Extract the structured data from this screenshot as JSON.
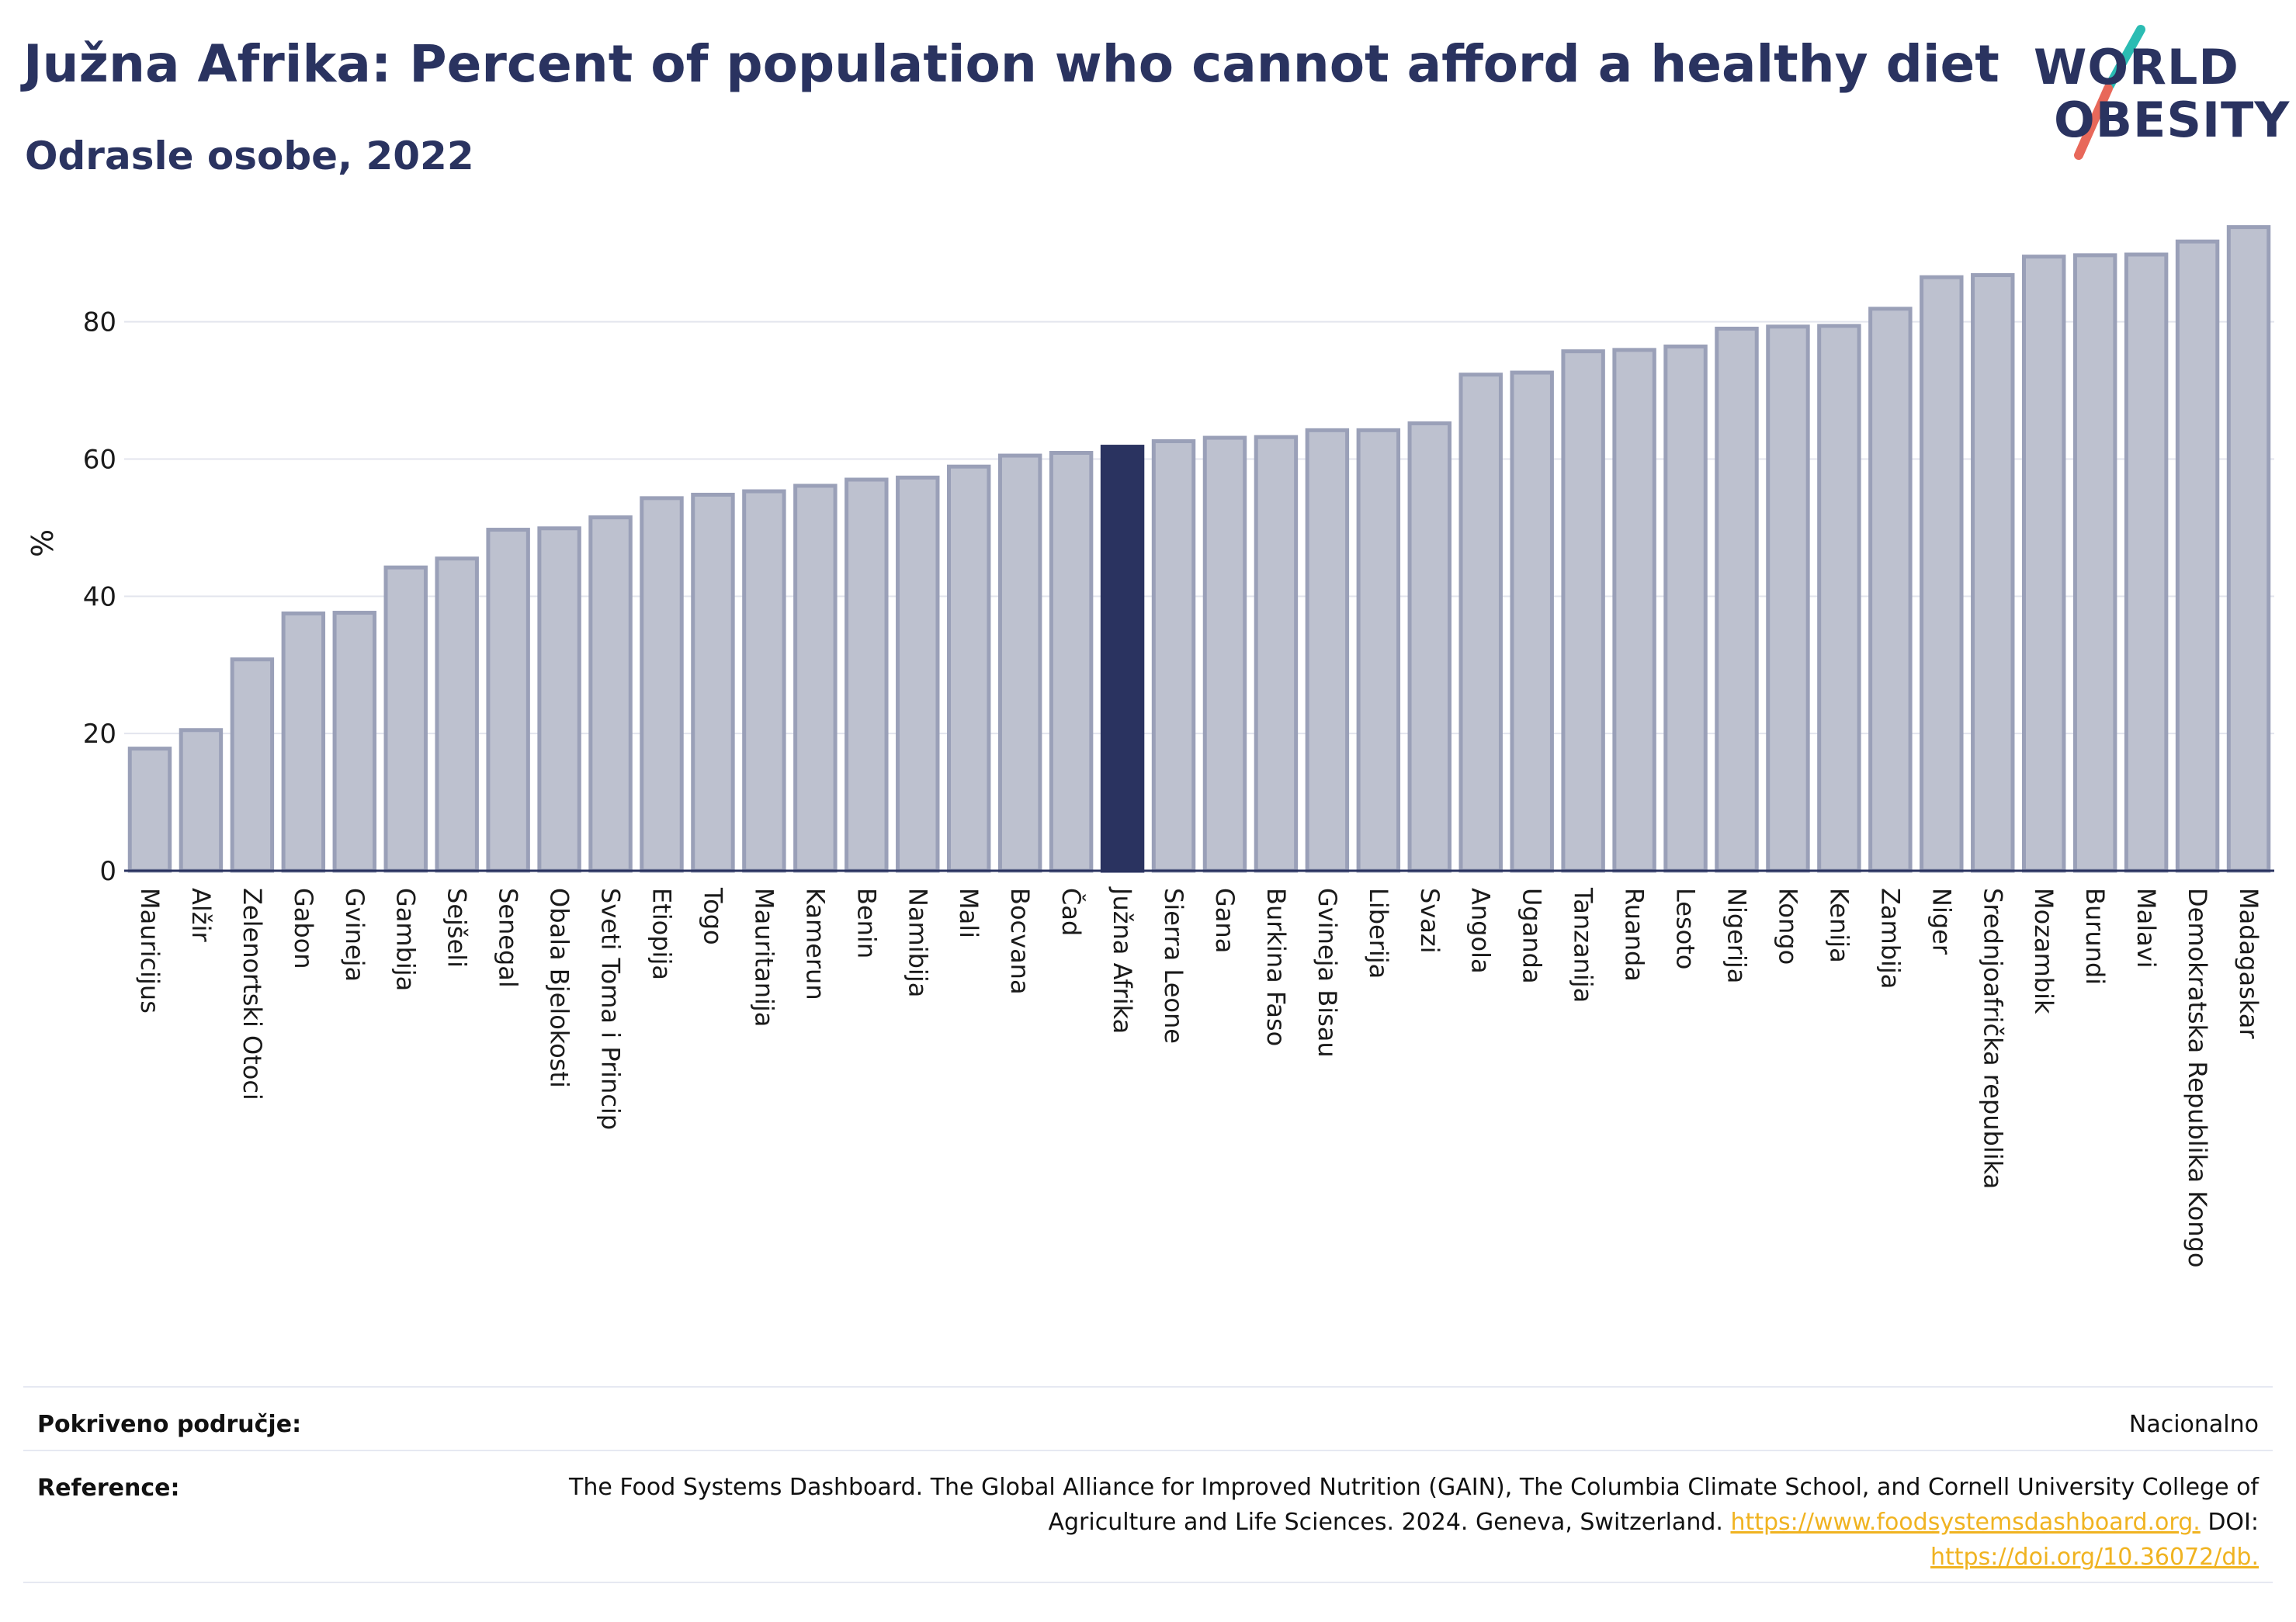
{
  "header": {
    "title": "Južna Afrika: Percent of population who cannot afford a healthy diet",
    "subtitle": "Odrasle osobe, 2022"
  },
  "logo": {
    "line1": "WORLD",
    "line2": "OBESITY",
    "colors": {
      "text": "#2a3360",
      "slash_top": "#2bbcb3",
      "slash_bottom": "#e8685a"
    }
  },
  "chart_data": {
    "type": "bar",
    "ylabel": "%",
    "xlabel": "",
    "ylim": [
      0,
      95
    ],
    "yticks": [
      0,
      20,
      40,
      60,
      80
    ],
    "grid": true,
    "highlight": "Južna Afrika",
    "colors": {
      "bar": "#bdc1cf",
      "bar_border": "#9aa0b8",
      "highlight": "#2a3360"
    },
    "categories": [
      "Mauricijus",
      "Alžir",
      "Zelenortski Otoci",
      "Gabon",
      "Gvineja",
      "Gambija",
      "Sejšeli",
      "Senegal",
      "Obala Bjelokosti",
      "Sveti Toma i Princip",
      "Etiopija",
      "Togo",
      "Mauritanija",
      "Kamerun",
      "Benin",
      "Namibija",
      "Mali",
      "Bocvana",
      "Čad",
      "Južna Afrika",
      "Sierra Leone",
      "Gana",
      "Burkina Faso",
      "Gvineja Bisau",
      "Liberija",
      "Svazi",
      "Angola",
      "Uganda",
      "Tanzanija",
      "Ruanda",
      "Lesoto",
      "Nigerija",
      "Kongo",
      "Kenija",
      "Zambija",
      "Niger",
      "Srednjoafrička republika",
      "Mozambik",
      "Burundi",
      "Malavi",
      "Demokratska Republika Kongo",
      "Madagaskar"
    ],
    "values": [
      17.8,
      20.5,
      30.8,
      37.5,
      37.6,
      44.2,
      45.5,
      49.7,
      49.9,
      51.5,
      54.3,
      54.8,
      55.3,
      56.1,
      57.0,
      57.3,
      58.9,
      60.5,
      60.9,
      61.8,
      62.6,
      63.1,
      63.2,
      64.2,
      64.2,
      65.2,
      72.3,
      72.6,
      75.7,
      75.9,
      76.4,
      79.0,
      79.3,
      79.4,
      81.9,
      86.5,
      86.8,
      89.5,
      89.7,
      89.8,
      91.7,
      93.8
    ]
  },
  "footer": {
    "coverage_label": "Pokriveno područje:",
    "coverage_value": "Nacionalno",
    "reference_label": "Reference:",
    "reference_text": "The Food Systems Dashboard. The Global Alliance for Improved Nutrition (GAIN), The Columbia Climate School, and Cornell University College of Agriculture and Life Sciences. 2024. Geneva, Switzerland.",
    "reference_link": "https://www.foodsystemsdashboard.org.",
    "doi_label": "DOI:",
    "doi_link": "https://doi.org/10.36072/db."
  }
}
